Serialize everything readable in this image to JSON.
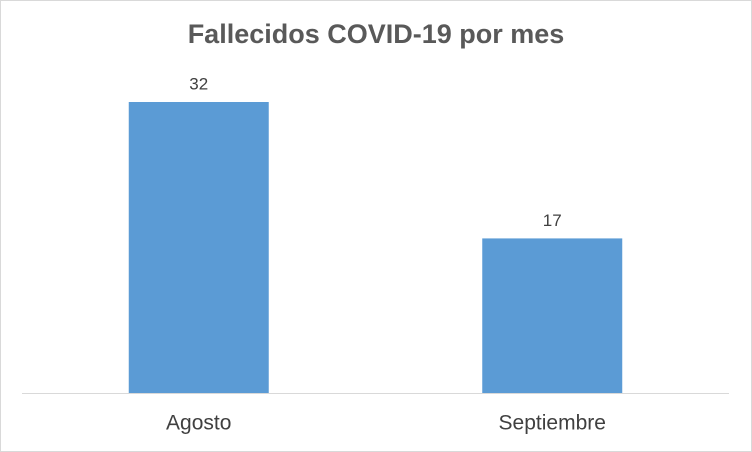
{
  "chart_data": {
    "type": "bar",
    "title": "Fallecidos COVID-19 por mes",
    "categories": [
      "Agosto",
      "Septiembre"
    ],
    "values": [
      32,
      17
    ],
    "color": "#5b9bd5"
  }
}
